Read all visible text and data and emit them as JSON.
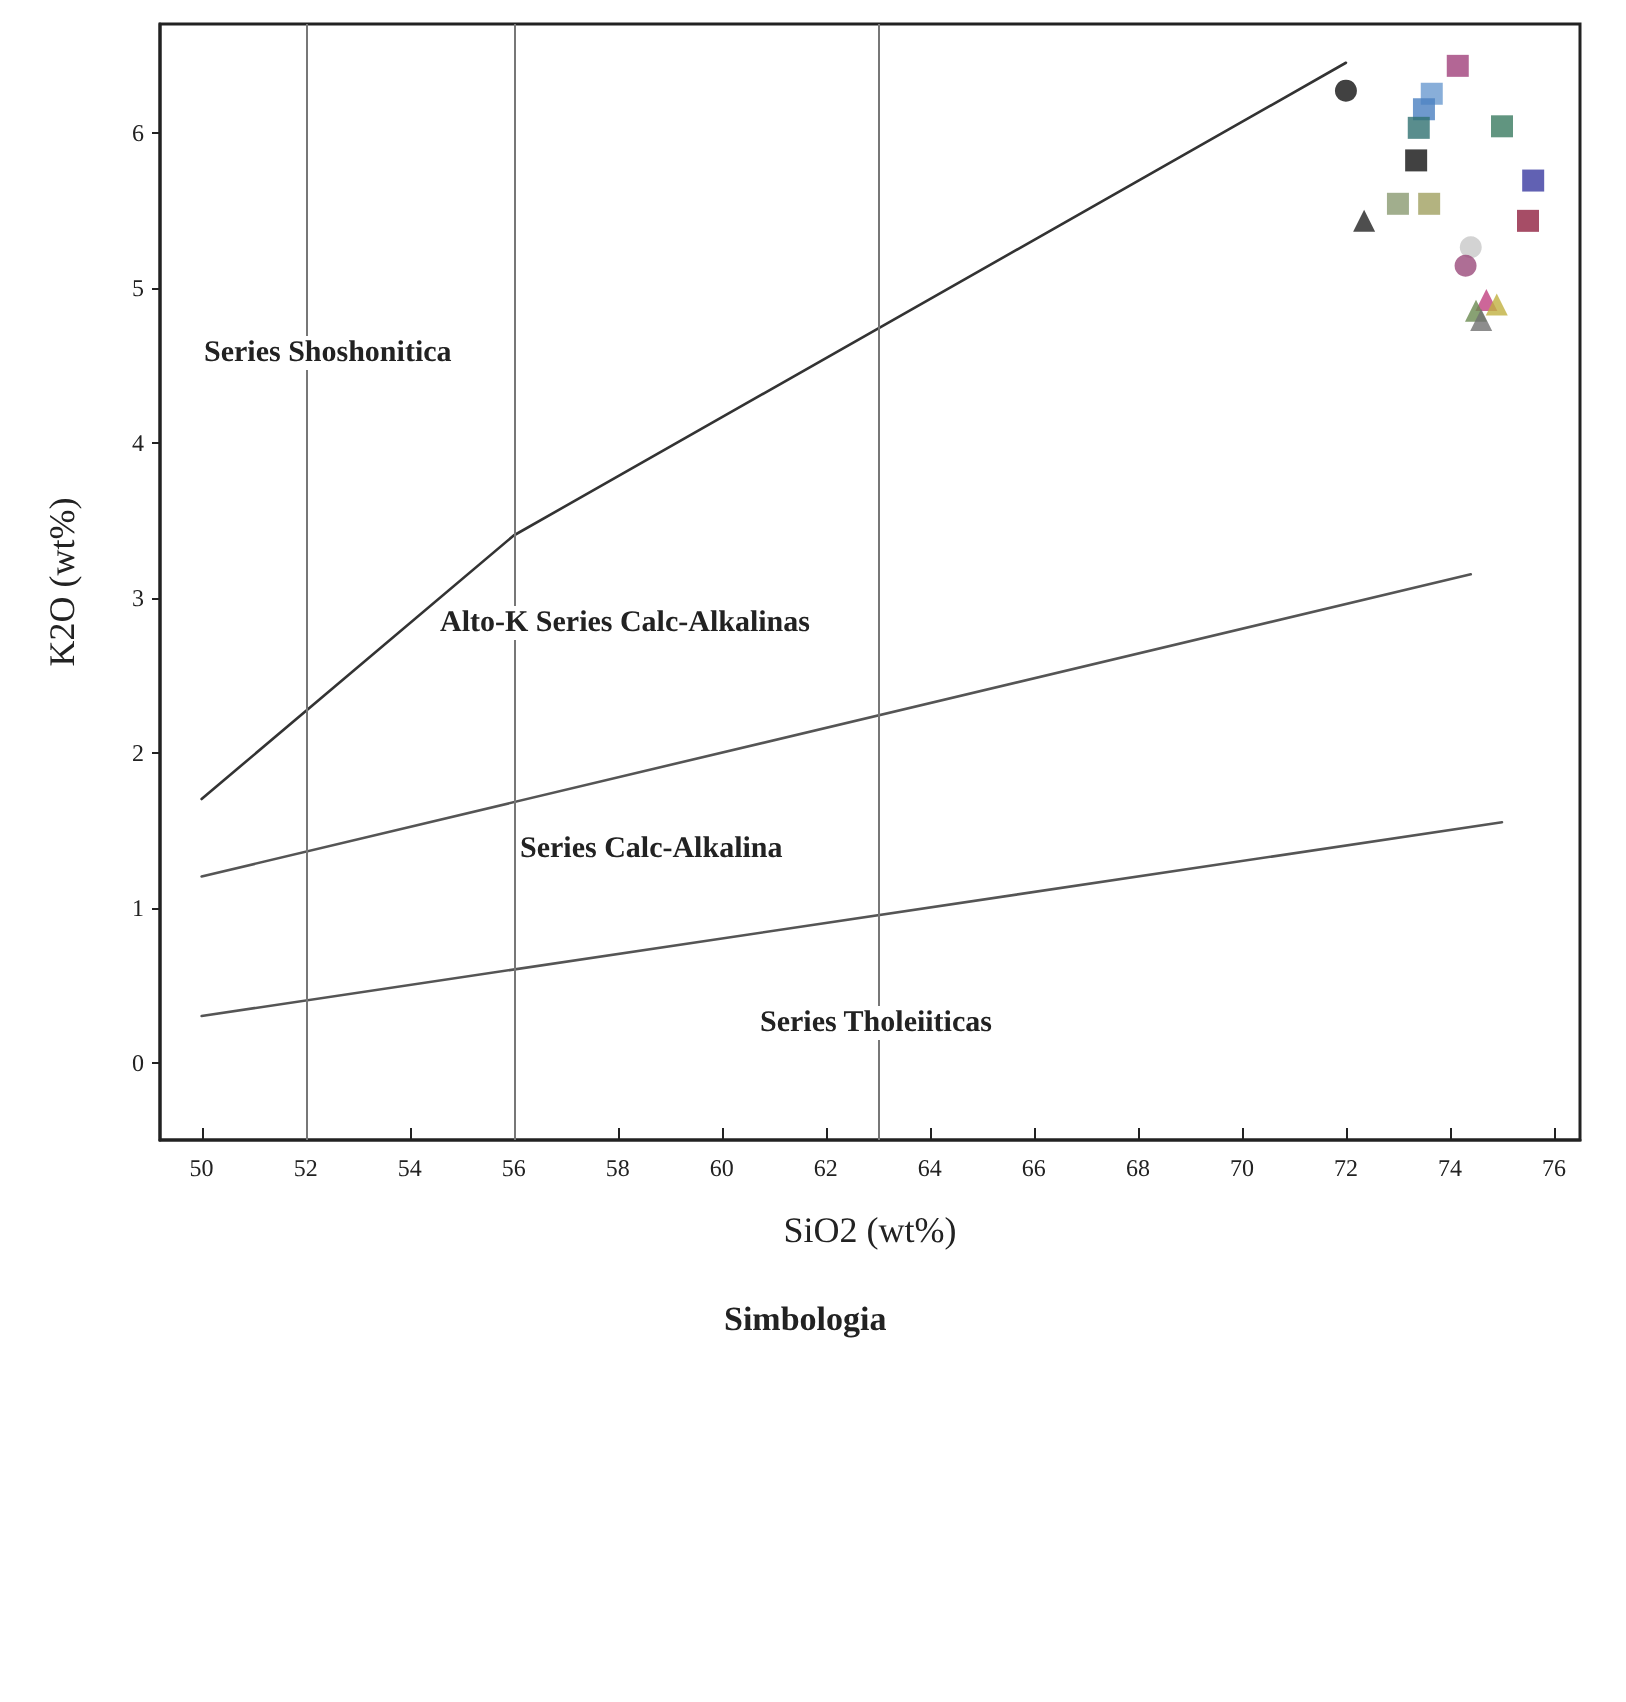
{
  "chart_data": {
    "type": "scatter",
    "xlabel": "SiO2 (wt%)",
    "ylabel": "K2O (wt%)",
    "xlim": [
      49.2,
      76.5
    ],
    "ylim": [
      -0.5,
      6.7
    ],
    "xticks": [
      50,
      52,
      54,
      56,
      58,
      60,
      62,
      64,
      66,
      68,
      70,
      72,
      74,
      76
    ],
    "yticks": [
      0,
      1,
      2,
      3,
      4,
      5,
      6
    ],
    "grid": false,
    "series": [
      {
        "type": "line",
        "color": "#333333",
        "marker": "none",
        "line_style": "solid",
        "x": [
          50,
          56,
          72
        ],
        "values": [
          1.7,
          3.4,
          6.45
        ]
      },
      {
        "type": "line",
        "color": "#555555",
        "marker": "none",
        "line_style": "solid",
        "x": [
          50,
          74.4
        ],
        "values": [
          1.2,
          3.15
        ]
      },
      {
        "type": "line",
        "color": "#555555",
        "marker": "none",
        "line_style": "solid",
        "x": [
          50,
          75
        ],
        "values": [
          0.3,
          1.55
        ]
      },
      {
        "marker": "circle",
        "x": [
          72.0,
          74.4,
          74.3
        ],
        "values": [
          6.27,
          5.26,
          5.14
        ],
        "colors": [
          "#111111",
          "#c8c8c8",
          "#9a4a7a"
        ]
      },
      {
        "marker": "square",
        "x": [
          74.15,
          73.65,
          73.5,
          73.4,
          75.0,
          73.35,
          75.6,
          73.0,
          73.6,
          75.5
        ],
        "values": [
          6.43,
          6.25,
          6.15,
          6.03,
          6.04,
          5.82,
          5.69,
          5.54,
          5.54,
          5.43
        ],
        "colors": [
          "#a0407a",
          "#6a9ad0",
          "#4a80c0",
          "#2f7070",
          "#3a7a60",
          "#111111",
          "#3a3aa0",
          "#8a9a70",
          "#a0a060",
          "#902040"
        ]
      },
      {
        "marker": "triangle",
        "x": [
          72.35,
          74.7,
          74.5,
          74.9,
          74.6
        ],
        "values": [
          5.43,
          4.92,
          4.85,
          4.89,
          4.79
        ],
        "colors": [
          "#222222",
          "#c04080",
          "#6a8a50",
          "#c0b040",
          "#707070"
        ]
      }
    ],
    "ref_lines": [
      {
        "axis": "x",
        "value": 52,
        "color": "#777777"
      },
      {
        "axis": "x",
        "value": 56,
        "color": "#777777"
      },
      {
        "axis": "x",
        "value": 63,
        "color": "#777777"
      }
    ],
    "annotations": [
      "Series Shoshonitica",
      "Alto-K Series Calc-Alkalinas",
      "Series Calc-Alkalina",
      "Series Tholeiiticas",
      "Simbologia"
    ]
  }
}
